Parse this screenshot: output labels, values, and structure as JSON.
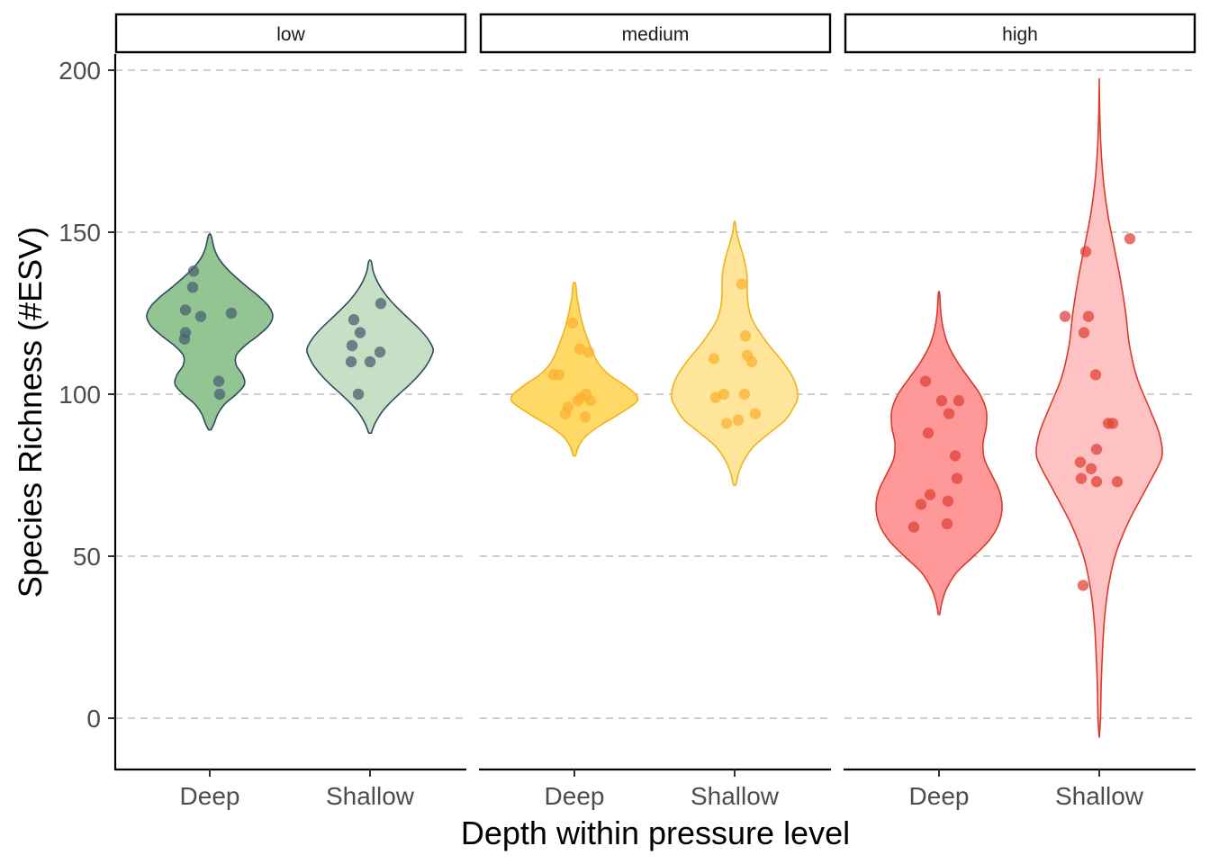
{
  "chart_data": {
    "type": "violin",
    "xlabel": "Depth within pressure level",
    "ylabel": "Species Richness (#ESV)",
    "ylim": [
      -15,
      205
    ],
    "yticks": [
      0,
      50,
      100,
      150,
      200
    ],
    "grid": "horizontal dashed",
    "legend": "none",
    "categories": [
      "Deep",
      "Shallow"
    ],
    "panels": [
      {
        "label": "low",
        "line_color": "#2f4b5f",
        "point_color": "#4a6070",
        "groups": [
          {
            "name": "Deep",
            "fill": "#93c593",
            "range": [
              89,
              149
            ],
            "density": [
              [
                89,
                0.02
              ],
              [
                91,
                0.07
              ],
              [
                94,
                0.13
              ],
              [
                97,
                0.24
              ],
              [
                100,
                0.42
              ],
              [
                103,
                0.55
              ],
              [
                106,
                0.52
              ],
              [
                109,
                0.42
              ],
              [
                112,
                0.42
              ],
              [
                115,
                0.56
              ],
              [
                118,
                0.76
              ],
              [
                121,
                0.93
              ],
              [
                124,
                1.0
              ],
              [
                127,
                0.94
              ],
              [
                130,
                0.79
              ],
              [
                133,
                0.6
              ],
              [
                136,
                0.42
              ],
              [
                139,
                0.26
              ],
              [
                142,
                0.14
              ],
              [
                145,
                0.07
              ],
              [
                149,
                0.02
              ]
            ],
            "points": [
              [
                -0.18,
                138
              ],
              [
                -0.27,
                126
              ],
              [
                -0.27,
                119
              ],
              [
                -0.28,
                117
              ],
              [
                -0.1,
                124
              ],
              [
                -0.19,
                133
              ],
              [
                0.24,
                125
              ],
              [
                0.1,
                104
              ],
              [
                0.11,
                100
              ]
            ]
          },
          {
            "name": "Shallow",
            "fill": "#c6e0c6",
            "range": [
              88,
              141
            ],
            "density": [
              [
                88,
                0.02
              ],
              [
                91,
                0.08
              ],
              [
                94,
                0.17
              ],
              [
                97,
                0.3
              ],
              [
                100,
                0.46
              ],
              [
                103,
                0.63
              ],
              [
                106,
                0.78
              ],
              [
                109,
                0.9
              ],
              [
                112,
                0.98
              ],
              [
                114,
                1.0
              ],
              [
                117,
                0.92
              ],
              [
                120,
                0.79
              ],
              [
                123,
                0.63
              ],
              [
                126,
                0.47
              ],
              [
                129,
                0.32
              ],
              [
                132,
                0.2
              ],
              [
                135,
                0.11
              ],
              [
                138,
                0.05
              ],
              [
                141,
                0.02
              ]
            ],
            "points": [
              [
                0.12,
                128
              ],
              [
                -0.18,
                123
              ],
              [
                -0.11,
                119
              ],
              [
                -0.2,
                115
              ],
              [
                -0.21,
                110
              ],
              [
                0.11,
                113
              ],
              [
                0.0,
                110
              ],
              [
                -0.13,
                100
              ]
            ]
          }
        ]
      },
      {
        "label": "medium",
        "line_color": "#f2b21a",
        "point_color": "#f9b233",
        "groups": [
          {
            "name": "Deep",
            "fill": "#ffd966",
            "range": [
              81,
              134
            ],
            "density": [
              [
                81,
                0.02
              ],
              [
                84,
                0.07
              ],
              [
                87,
                0.18
              ],
              [
                90,
                0.38
              ],
              [
                93,
                0.64
              ],
              [
                96,
                0.88
              ],
              [
                98,
                1.0
              ],
              [
                100,
                0.97
              ],
              [
                103,
                0.78
              ],
              [
                106,
                0.55
              ],
              [
                109,
                0.4
              ],
              [
                112,
                0.31
              ],
              [
                115,
                0.25
              ],
              [
                118,
                0.19
              ],
              [
                121,
                0.14
              ],
              [
                124,
                0.1
              ],
              [
                127,
                0.07
              ],
              [
                130,
                0.04
              ],
              [
                134,
                0.02
              ]
            ],
            "points": [
              [
                -0.02,
                122
              ],
              [
                0.06,
                114
              ],
              [
                0.16,
                113
              ],
              [
                -0.23,
                106
              ],
              [
                -0.17,
                106
              ],
              [
                0.13,
                100
              ],
              [
                0.07,
                99
              ],
              [
                0.04,
                98
              ],
              [
                0.18,
                98
              ],
              [
                -0.07,
                96
              ],
              [
                -0.1,
                94
              ],
              [
                0.12,
                93
              ]
            ]
          },
          {
            "name": "Shallow",
            "fill": "#ffe59a",
            "range": [
              72,
              153
            ],
            "density": [
              [
                72,
                0.02
              ],
              [
                76,
                0.07
              ],
              [
                80,
                0.16
              ],
              [
                84,
                0.31
              ],
              [
                88,
                0.55
              ],
              [
                92,
                0.8
              ],
              [
                96,
                0.94
              ],
              [
                99,
                1.0
              ],
              [
                103,
                0.97
              ],
              [
                107,
                0.87
              ],
              [
                111,
                0.72
              ],
              [
                115,
                0.55
              ],
              [
                119,
                0.4
              ],
              [
                123,
                0.28
              ],
              [
                127,
                0.22
              ],
              [
                131,
                0.2
              ],
              [
                135,
                0.2
              ],
              [
                139,
                0.18
              ],
              [
                143,
                0.13
              ],
              [
                147,
                0.07
              ],
              [
                150,
                0.03
              ],
              [
                153,
                0.01
              ]
            ],
            "points": [
              [
                0.08,
                134
              ],
              [
                0.12,
                118
              ],
              [
                -0.23,
                111
              ],
              [
                0.14,
                112
              ],
              [
                0.19,
                110
              ],
              [
                -0.12,
                100
              ],
              [
                -0.21,
                99
              ],
              [
                0.11,
                100
              ],
              [
                -0.09,
                91
              ],
              [
                0.04,
                92
              ],
              [
                0.23,
                94
              ]
            ]
          }
        ]
      },
      {
        "label": "high",
        "line_color": "#d93a2b",
        "point_color": "#e0433a",
        "groups": [
          {
            "name": "Deep",
            "fill": "#ff9999",
            "range": [
              32,
              131
            ],
            "density": [
              [
                32,
                0.01
              ],
              [
                36,
                0.05
              ],
              [
                40,
                0.12
              ],
              [
                45,
                0.28
              ],
              [
                50,
                0.55
              ],
              [
                55,
                0.8
              ],
              [
                60,
                0.95
              ],
              [
                65,
                1.0
              ],
              [
                70,
                0.96
              ],
              [
                75,
                0.84
              ],
              [
                80,
                0.72
              ],
              [
                85,
                0.7
              ],
              [
                90,
                0.75
              ],
              [
                95,
                0.75
              ],
              [
                100,
                0.65
              ],
              [
                105,
                0.47
              ],
              [
                110,
                0.29
              ],
              [
                115,
                0.15
              ],
              [
                120,
                0.07
              ],
              [
                125,
                0.03
              ],
              [
                131,
                0.01
              ]
            ],
            "points": [
              [
                -0.15,
                104
              ],
              [
                0.03,
                98
              ],
              [
                0.22,
                98
              ],
              [
                0.11,
                94
              ],
              [
                -0.12,
                88
              ],
              [
                0.18,
                81
              ],
              [
                0.2,
                74
              ],
              [
                -0.1,
                69
              ],
              [
                -0.2,
                66
              ],
              [
                0.1,
                67
              ],
              [
                -0.28,
                59
              ],
              [
                0.09,
                60
              ]
            ]
          },
          {
            "name": "Shallow",
            "fill": "#ffc2c2",
            "range": [
              -6,
              196
            ],
            "density": [
              [
                -6,
                0.0
              ],
              [
                0,
                0.02
              ],
              [
                10,
                0.03
              ],
              [
                20,
                0.05
              ],
              [
                30,
                0.08
              ],
              [
                40,
                0.14
              ],
              [
                50,
                0.25
              ],
              [
                60,
                0.45
              ],
              [
                70,
                0.72
              ],
              [
                78,
                0.94
              ],
              [
                82,
                1.0
              ],
              [
                88,
                0.95
              ],
              [
                95,
                0.81
              ],
              [
                105,
                0.6
              ],
              [
                115,
                0.48
              ],
              [
                125,
                0.42
              ],
              [
                135,
                0.34
              ],
              [
                145,
                0.24
              ],
              [
                155,
                0.14
              ],
              [
                165,
                0.07
              ],
              [
                175,
                0.03
              ],
              [
                185,
                0.01
              ],
              [
                196,
                0.0
              ]
            ],
            "points": [
              [
                0.34,
                148
              ],
              [
                -0.15,
                144
              ],
              [
                -0.38,
                124
              ],
              [
                -0.12,
                124
              ],
              [
                -0.17,
                119
              ],
              [
                -0.04,
                106
              ],
              [
                0.1,
                91
              ],
              [
                0.15,
                91
              ],
              [
                -0.21,
                79
              ],
              [
                -0.2,
                74
              ],
              [
                -0.09,
                77
              ],
              [
                -0.03,
                73
              ],
              [
                -0.03,
                83
              ],
              [
                0.2,
                73
              ],
              [
                -0.18,
                41
              ]
            ]
          }
        ]
      }
    ]
  }
}
